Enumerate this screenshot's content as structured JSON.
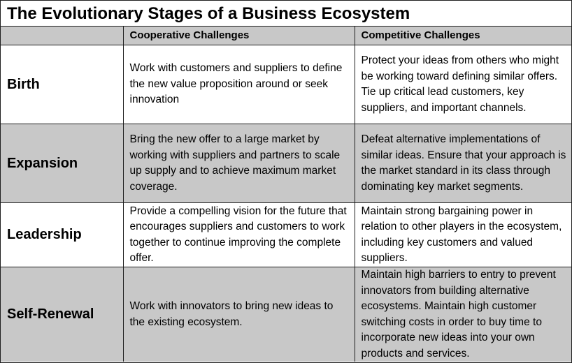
{
  "title": "The Evolutionary Stages of a Business Ecosystem",
  "columns": [
    "",
    "Cooperative Challenges",
    "Competitive Challenges"
  ],
  "rows": [
    {
      "stage": "Birth",
      "shaded": false,
      "cooperative": "Work with customers and suppliers to define the new value proposition around or seek innovation",
      "competitive": "Protect your ideas from others who might be working toward defining similar offers. Tie up critical lead customers, key suppliers, and important channels."
    },
    {
      "stage": "Expansion",
      "shaded": true,
      "cooperative": "Bring the new offer to a large market by working with suppliers and partners to scale up supply and to achieve maximum market coverage.",
      "competitive": "Defeat alternative implementations of similar ideas. Ensure that your approach is the market standard in its class through dominating key market segments."
    },
    {
      "stage": "Leadership",
      "shaded": false,
      "cooperative": "Provide a compelling vision for the future that encourages suppliers and customers to work together to continue improving the complete offer.",
      "competitive": "Maintain strong bargaining power in relation to other players in the ecosystem, including key customers and valued suppliers."
    },
    {
      "stage": "Self-Renewal",
      "shaded": true,
      "cooperative": "Work with innovators to bring new ideas to the existing ecosystem.",
      "competitive": "Maintain high barriers to entry to prevent innovators from building alternative ecosystems. Maintain high customer switching costs in order to buy time to incorporate new ideas into your own products and services."
    }
  ],
  "colors": {
    "border": "#1f1f1f",
    "shade": "#c8c8c8",
    "background": "#ffffff"
  }
}
